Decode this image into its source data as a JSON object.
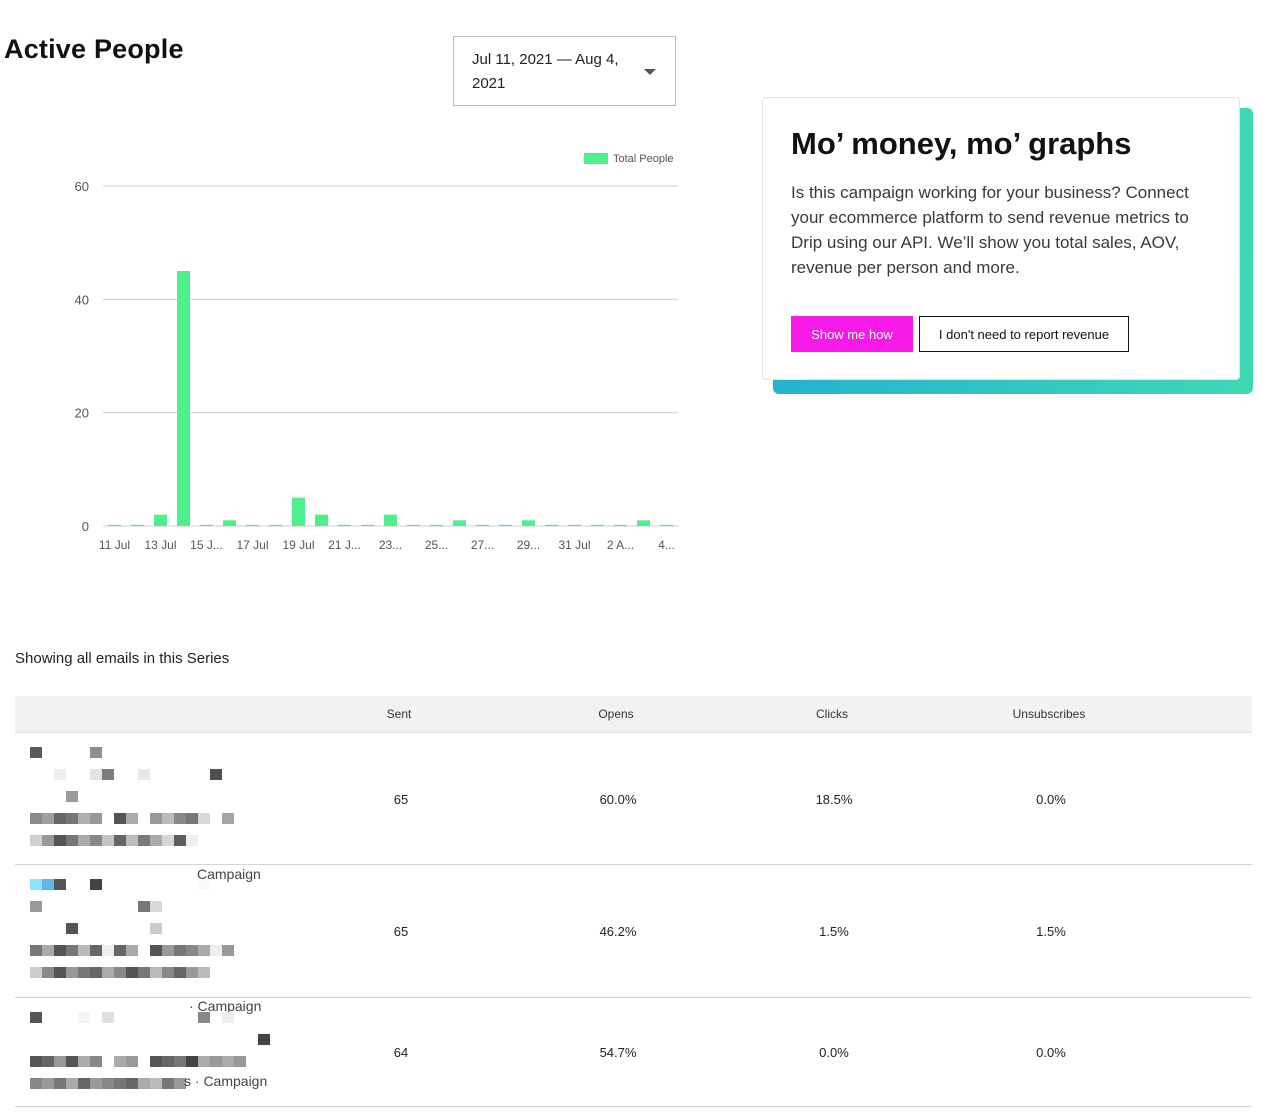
{
  "header": {
    "title": "Active People"
  },
  "date_range": {
    "label": "Jul 11, 2021 — Aug 4, 2021"
  },
  "chart_data": {
    "type": "bar",
    "legend": [
      "Total People"
    ],
    "legend_position": "top-right",
    "series": [
      {
        "name": "Total People",
        "color": "#4df08a",
        "values": [
          0,
          0,
          2,
          45,
          0,
          1,
          0,
          0,
          5,
          2,
          0,
          0,
          2,
          0,
          0,
          1,
          0,
          0,
          1,
          0,
          0,
          0,
          0,
          1,
          0
        ]
      }
    ],
    "categories": [
      "11 Jul",
      "12 Jul",
      "13 Jul",
      "14 Jul",
      "15 Jul",
      "16 Jul",
      "17 Jul",
      "18 Jul",
      "19 Jul",
      "20 Jul",
      "21 Jul",
      "22 Jul",
      "23 Jul",
      "24 Jul",
      "25 Jul",
      "26 Jul",
      "27 Jul",
      "28 Jul",
      "29 Jul",
      "30 Jul",
      "31 Jul",
      "1 Aug",
      "2 Aug",
      "3 Aug",
      "4 Aug"
    ],
    "xtick_labels": [
      "11 Jul",
      "13 Jul",
      "15 J...",
      "17 Jul",
      "19 Jul",
      "21 J...",
      "23...",
      "25...",
      "27...",
      "29...",
      "31 Jul",
      "2 A...",
      "4..."
    ],
    "yticks": [
      0,
      20,
      40,
      60
    ],
    "ylim": [
      0,
      60
    ],
    "grid": true
  },
  "promo": {
    "title": "Mo’ money, mo’ graphs",
    "body": "Is this campaign working for your business? Connect your ecommerce platform to send revenue metrics to Drip using our API. We’ll show you total sales, AOV, revenue per person and more.",
    "primary_label": "Show me how",
    "secondary_label": "I don't need to report revenue",
    "primary_color": "#f51ae8",
    "gradient": [
      "#26b2d0",
      "#3fd8b5"
    ]
  },
  "table": {
    "caption": "Showing all emails in this Series",
    "columns": [
      "Sent",
      "Opens",
      "Clicks",
      "Unsubscribes"
    ],
    "rows": [
      {
        "suffix": "Campaign",
        "sent": "65",
        "opens": "60.0%",
        "clicks": "18.5%",
        "unsubscribes": "0.0%"
      },
      {
        "suffix": "· Campaign",
        "sent": "65",
        "opens": "46.2%",
        "clicks": "1.5%",
        "unsubscribes": "1.5%"
      },
      {
        "suffix": "s · Campaign",
        "sent": "64",
        "opens": "54.7%",
        "clicks": "0.0%",
        "unsubscribes": "0.0%"
      }
    ]
  }
}
